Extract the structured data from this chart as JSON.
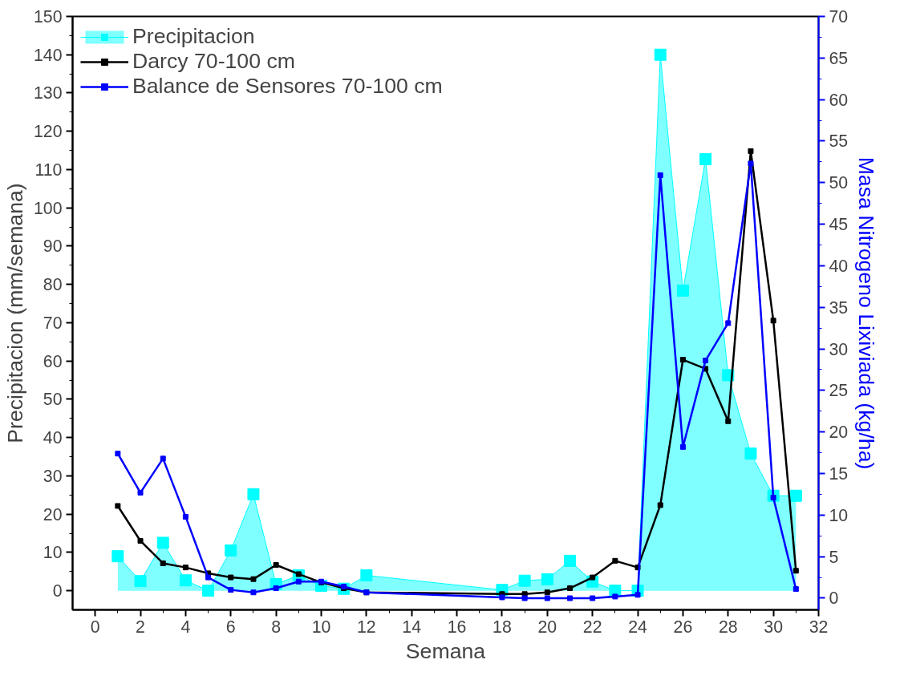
{
  "chart_data": {
    "type": "line",
    "xlabel": "Semana",
    "ylabel": "Precipitacion (mm/semana)",
    "y2label": "Masa Nitrogeno Lixiviada (kg/ha)",
    "x": [
      1,
      2,
      3,
      4,
      5,
      6,
      7,
      8,
      9,
      10,
      11,
      12,
      18,
      19,
      20,
      21,
      22,
      23,
      24,
      25,
      26,
      27,
      28,
      29,
      30,
      31
    ],
    "xlim": [
      -1,
      32
    ],
    "xticks": [
      0,
      2,
      4,
      6,
      8,
      10,
      12,
      14,
      16,
      18,
      20,
      22,
      24,
      26,
      28,
      30,
      32
    ],
    "ylim": [
      -5,
      150
    ],
    "yticks": [
      0,
      10,
      20,
      30,
      40,
      50,
      60,
      70,
      80,
      90,
      100,
      110,
      120,
      130,
      140,
      150
    ],
    "y2lim": [
      -1.4,
      70
    ],
    "y2ticks": [
      0,
      5,
      10,
      15,
      20,
      25,
      30,
      35,
      40,
      45,
      50,
      55,
      60,
      65,
      70
    ],
    "grid": false,
    "legend": "top left",
    "line_style": "solid",
    "series": [
      {
        "name": "Precipitacion",
        "type": "area",
        "marker": "square",
        "color": "#00ffff",
        "values": [
          9,
          2.5,
          12.5,
          2.7,
          0,
          10.5,
          25.2,
          1.7,
          4,
          1.3,
          0.5,
          4,
          0.2,
          2.6,
          3.0,
          7.8,
          2.4,
          0,
          0,
          140,
          78.4,
          112.7,
          56.3,
          35.8,
          24.8,
          24.8
        ]
      },
      {
        "name": "Darcy 70-100 cm",
        "marker": "square",
        "axis": "y2",
        "color": "#000000",
        "values": [
          11.1,
          6.9,
          4.2,
          3.7,
          3.0,
          2.5,
          2.3,
          4.0,
          2.9,
          1.9,
          1.2,
          0.7,
          0.5,
          0.5,
          0.7,
          1.2,
          2.5,
          4.5,
          3.7,
          11.2,
          28.7,
          27.6,
          21.3,
          53.8,
          33.4,
          3.3
        ]
      },
      {
        "name": "Balance de Sensores 70-100 cm",
        "marker": "square",
        "axis": "y2",
        "color": "#0000ff",
        "values": [
          17.4,
          12.7,
          16.8,
          9.8,
          2.5,
          1.0,
          0.7,
          1.2,
          2.0,
          2.0,
          1.4,
          0.7,
          0.1,
          0,
          0,
          0,
          0,
          0.2,
          0.4,
          50.9,
          18.2,
          28.6,
          33.1,
          52.3,
          12.1,
          1.1
        ]
      }
    ]
  }
}
